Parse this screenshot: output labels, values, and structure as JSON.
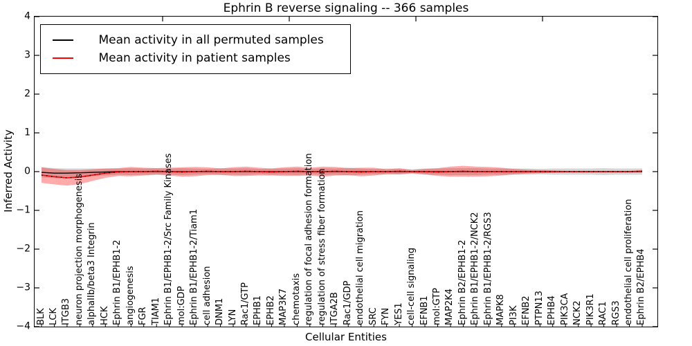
{
  "chart_data": {
    "type": "line",
    "title": "Ephrin B reverse signaling -- 366 samples",
    "xlabel": "Cellular Entities",
    "ylabel": "Inferred Activity",
    "ylim": [
      -4,
      4
    ],
    "ytick_labels": [
      "4",
      "3",
      "2",
      "1",
      "0",
      "−1",
      "−2",
      "−3",
      "−4"
    ],
    "grid": false,
    "legend_position": "upper left",
    "categories": [
      "BLK",
      "LCK",
      "ITGB3",
      "neuron projection morphogenesis",
      "alphaIIb/beta3 Integrin",
      "HCK",
      "Ephrin B1/EPHB1-2",
      "angiogenesis",
      "FGR",
      "TIAM1",
      "Ephrin B1/EPHB1-2/Src Family Kinases",
      "mol:GDP",
      "Ephrin B1/EPHB1-2/Tiam1",
      "cell adhesion",
      "DNM1",
      "LYN",
      "Rac1/GTP",
      "EPHB1",
      "EPHB2",
      "MAP3K7",
      "chemotaxis",
      "regulation of focal adhesion formation",
      "regulation of stress fiber formation",
      "ITGA2B",
      "Rac1/GDP",
      "endothelial cell migration",
      "SRC",
      "FYN",
      "YES1",
      "cell-cell signaling",
      "EFNB1",
      "mol:GTP",
      "MAP2K4",
      "Ephrin B2/EPHB1-2",
      "Ephrin B1/EPHB1-2/NCK2",
      "Ephrin B1/EPHB1-2/RGS3",
      "MAPK8",
      "PI3K",
      "EFNB2",
      "PTPN13",
      "EPHB4",
      "PIK3CA",
      "NCK2",
      "PIK3R1",
      "RAC1",
      "RGS3",
      "endothelial cell proliferation",
      "Ephrin B2/EPHB4"
    ],
    "series": [
      {
        "name": "Mean activity in all permuted samples",
        "color": "#000000",
        "line_style": "solid",
        "band_color": "rgba(0,0,0,0.16)",
        "values": [
          -0.02,
          -0.04,
          -0.04,
          -0.03,
          -0.02,
          -0.01,
          0,
          0,
          0,
          0,
          0,
          0,
          0,
          0,
          0,
          0,
          0,
          0,
          0,
          0,
          0,
          0,
          0,
          0,
          0,
          0,
          0,
          0,
          0,
          0,
          0,
          0,
          0,
          0,
          0,
          0,
          0,
          0,
          0,
          0,
          0,
          0,
          0,
          0,
          0,
          0,
          0,
          0
        ],
        "band_halfwidth": [
          0.13,
          0.13,
          0.12,
          0.11,
          0.1,
          0.09,
          0.08,
          0.09,
          0.08,
          0.09,
          0.08,
          0.09,
          0.08,
          0.07,
          0.09,
          0.08,
          0.09,
          0.07,
          0.08,
          0.08,
          0.09,
          0.07,
          0.09,
          0.08,
          0.1,
          0.08,
          0.07,
          0.08,
          0.07,
          0.06,
          0.08,
          0.08,
          0.09,
          0.09,
          0.09,
          0.08,
          0.08,
          0.08,
          0.08,
          0.07,
          0.08,
          0.08,
          0.08,
          0.08,
          0.09,
          0.08,
          0.08,
          0.08
        ]
      },
      {
        "name": "Mean activity in patient samples",
        "color": "#ff0000",
        "line_style": "solid",
        "band_color": "rgba(255,0,0,0.33)",
        "values": [
          -0.09,
          -0.13,
          -0.16,
          -0.14,
          -0.09,
          -0.04,
          -0.01,
          0,
          0,
          0.01,
          0,
          -0.01,
          0,
          0.01,
          0,
          0,
          0.01,
          0,
          -0.01,
          0,
          0.01,
          0,
          0,
          0.01,
          0,
          -0.01,
          0,
          0,
          0.01,
          0,
          0,
          -0.01,
          0,
          0.01,
          0,
          0,
          0,
          0,
          0,
          0,
          0,
          0,
          0,
          0,
          0,
          0,
          0,
          0.01
        ],
        "band_halfwidth": [
          0.2,
          0.2,
          0.2,
          0.18,
          0.15,
          0.12,
          0.1,
          0.12,
          0.1,
          0.08,
          0.1,
          0.12,
          0.12,
          0.1,
          0.08,
          0.11,
          0.12,
          0.1,
          0.09,
          0.11,
          0.12,
          0.1,
          0.13,
          0.11,
          0.09,
          0.11,
          0.1,
          0.06,
          0.08,
          0.04,
          0.07,
          0.1,
          0.13,
          0.14,
          0.13,
          0.12,
          0.1,
          0.07,
          0.05,
          0.04,
          0.03,
          0.02,
          0.02,
          0.02,
          0.02,
          0.02,
          0.02,
          0.03
        ]
      }
    ],
    "overlay_line": {
      "follows": "Mean activity in patient samples",
      "color": "#000000",
      "line_style": "dotted"
    }
  }
}
